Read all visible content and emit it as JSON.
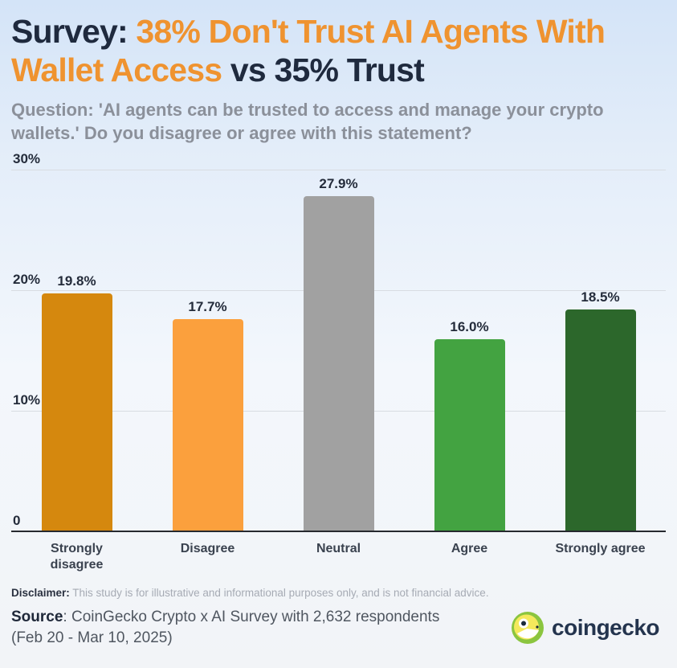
{
  "header": {
    "title_part1": "Survey: ",
    "title_part2": "38% Don't Trust AI Agents With Wallet Access",
    "title_part3": " vs 35% Trust",
    "subtitle": "Question: 'AI agents can be trusted to access and manage your crypto wallets.' Do you disagree or agree with this statement?"
  },
  "chart_data": {
    "type": "bar",
    "title": "Survey: 38% Don't Trust AI Agents With Wallet Access vs 35% Trust",
    "categories": [
      "Strongly disagree",
      "Disagree",
      "Neutral",
      "Agree",
      "Strongly agree"
    ],
    "values": [
      19.8,
      17.7,
      27.9,
      16.0,
      18.5
    ],
    "value_labels": [
      "19.8%",
      "17.7%",
      "27.9%",
      "16.0%",
      "18.5%"
    ],
    "bar_colors": [
      "#d5880e",
      "#fba03d",
      "#a1a1a1",
      "#43a341",
      "#2c672b"
    ],
    "xlabel": "",
    "ylabel": "",
    "ylim": [
      0,
      30
    ],
    "grid": true,
    "legend": "none",
    "yticks": [
      {
        "value": 30,
        "label": "30%"
      },
      {
        "value": 20,
        "label": "20%"
      },
      {
        "value": 10,
        "label": "10%"
      },
      {
        "value": 0,
        "label": "0"
      }
    ]
  },
  "footer": {
    "disclaimer_label": "Disclaimer:",
    "disclaimer_text": " This study is for illustrative and informational purposes only, and is not financial advice.",
    "source_label": "Source",
    "source_text": ": CoinGecko Crypto x AI Survey with 2,632 respondents (Feb 20 - Mar 10, 2025)",
    "brand": "coingecko"
  }
}
